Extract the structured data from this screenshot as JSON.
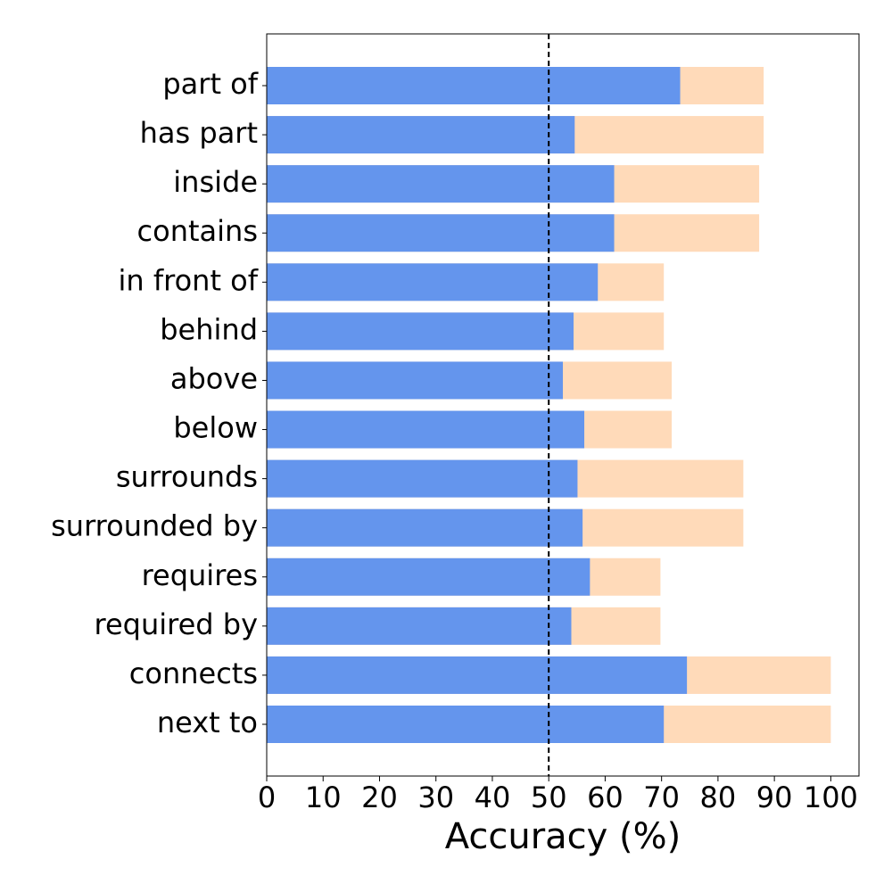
{
  "chart_data": {
    "type": "overlay-barh",
    "categories": [
      "part of",
      "has part",
      "inside",
      "contains",
      "in front of",
      "behind",
      "above",
      "below",
      "surrounds",
      "surrounded by",
      "requires",
      "required by",
      "connects",
      "next to"
    ],
    "series": [
      {
        "color": "#ffdab9",
        "values": [
          88.1,
          88.1,
          87.3,
          87.3,
          70.4,
          70.4,
          71.8,
          71.8,
          84.5,
          84.5,
          69.8,
          69.8,
          100,
          100
        ]
      },
      {
        "color": "#6495ed",
        "values": [
          73.3,
          54.6,
          61.6,
          61.6,
          58.7,
          54.4,
          52.5,
          56.3,
          55.1,
          56.0,
          57.3,
          54.0,
          74.5,
          70.4
        ]
      }
    ],
    "xlabel": "Accuracy (%)",
    "xlim": [
      0,
      105
    ],
    "xticks": [
      0,
      10,
      20,
      30,
      40,
      50,
      60,
      70,
      80,
      90,
      100
    ],
    "reference_line": 50,
    "grid": false
  }
}
